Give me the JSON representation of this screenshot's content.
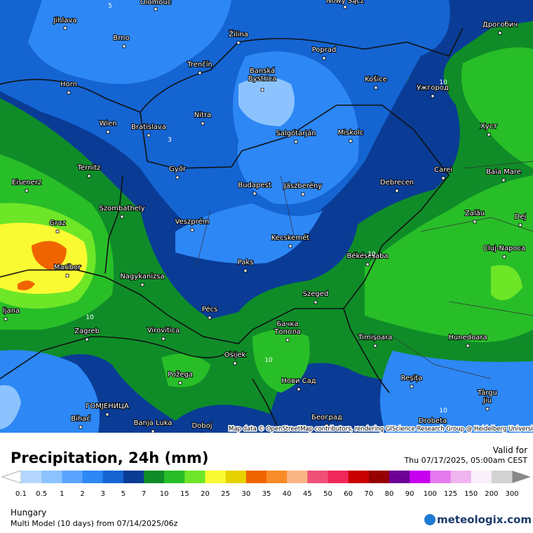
{
  "header": {
    "title": "Precipitation, 24h (mm)",
    "valid_label": "Valid for",
    "valid_time": "Thu 07/17/2025, 05:00am CEST"
  },
  "legend": {
    "labels": [
      "0.1",
      "0.5",
      "1",
      "2",
      "3",
      "5",
      "7",
      "10",
      "15",
      "20",
      "25",
      "30",
      "35",
      "40",
      "45",
      "50",
      "60",
      "70",
      "80",
      "90",
      "100",
      "125",
      "150",
      "200",
      "300"
    ],
    "colors": [
      "#b4d7ff",
      "#8cc3ff",
      "#5aa5ff",
      "#2d87f5",
      "#1464d2",
      "#0a3c96",
      "#0f8c28",
      "#28be28",
      "#6ee628",
      "#fafa32",
      "#e6d200",
      "#f06400",
      "#fa8c28",
      "#fab482",
      "#f05078",
      "#f0285a",
      "#c80000",
      "#960000",
      "#6e0096",
      "#c800f0",
      "#e678f0",
      "#f0b4f0",
      "#faf0fa",
      "#d2d2d2"
    ]
  },
  "footer": {
    "region": "Hungary",
    "model": "Multi Model (10 days) from  07/14/2025/06z",
    "brand": "meteologix.com"
  },
  "map": {
    "credit": "Map data © OpenStreetMap contributors, rendering GIScience Research Group @ Heidelberg University",
    "cities": [
      [
        "Olomouc"
      ],
      [
        "Nowy Sącz"
      ],
      [
        "Jihlava"
      ],
      [
        "Brno"
      ],
      [
        "Žilina"
      ],
      [
        "Poprad"
      ],
      [
        "Дрогобич"
      ],
      [
        "Trenčín"
      ],
      [
        "Banská",
        "Bystrica"
      ],
      [
        "Košice"
      ],
      [
        "Ужгород"
      ],
      [
        "Horn"
      ],
      [
        "Wien"
      ],
      [
        "Bratislava"
      ],
      [
        "Nitra"
      ],
      [
        "Salgótarján"
      ],
      [
        "Miskolc"
      ],
      [
        "Хуст"
      ],
      [
        "Ternitz"
      ],
      [
        "Győr"
      ],
      [
        "Budapest"
      ],
      [
        "Jászberény"
      ],
      [
        "Debrecen"
      ],
      [
        "Carei"
      ],
      [
        "Baia Mare"
      ],
      [
        "Eisenerz"
      ],
      [
        "Szombathely"
      ],
      [
        "Veszprém"
      ],
      [
        "Graz"
      ],
      [
        "Zalău"
      ],
      [
        "Dej"
      ],
      [
        "Kecskemét"
      ],
      [
        "Cluj-Napoca"
      ],
      [
        "Maribor"
      ],
      [
        "Paks"
      ],
      [
        "Békéscsaba"
      ],
      [
        "Nagykanizsa"
      ],
      [
        "Pécs"
      ],
      [
        "Szeged"
      ],
      [
        "ljana"
      ],
      [
        "Zagreb"
      ],
      [
        "Virovitica"
      ],
      [
        "Бачка",
        "Топола"
      ],
      [
        "Timișoara"
      ],
      [
        "Hunedoara"
      ],
      [
        "Osijek"
      ],
      [
        "Požega"
      ],
      [
        "Нови Сад"
      ],
      [
        "Reșița"
      ],
      [
        "Târgu",
        "Jiu"
      ],
      [
        "ГОМЈЕНИЦА"
      ],
      [
        "Bihać"
      ],
      [
        "Banja Luka"
      ],
      [
        "Doboj"
      ],
      [
        "Београд"
      ],
      [
        "Drobeta"
      ]
    ],
    "contour_labels": [
      "10",
      "10",
      "10",
      "10",
      "10",
      "5",
      "3"
    ]
  }
}
